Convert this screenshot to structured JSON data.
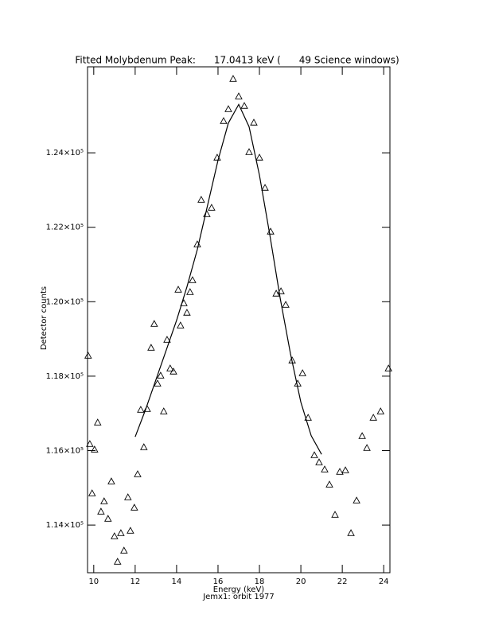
{
  "chart_data": {
    "type": "scatter",
    "title": "Fitted Molybdenum Peak:      17.0413 keV (      49 Science windows)",
    "x_label": "Energy (keV)",
    "y_label": "Detector counts",
    "subtitle": "Jemx1: orbit 1977",
    "xlim": [
      9.7,
      24.3
    ],
    "ylim": [
      112720,
      126310
    ],
    "xticks": [
      10,
      12,
      14,
      16,
      18,
      20,
      22,
      24
    ],
    "yticks": [
      {
        "value": 114000,
        "label": "1.14×10⁵"
      },
      {
        "value": 116000,
        "label": "1.16×10⁵"
      },
      {
        "value": 118000,
        "label": "1.18×10⁵"
      },
      {
        "value": 120000,
        "label": "1.20×10⁵"
      },
      {
        "value": 122000,
        "label": "1.22×10⁵"
      },
      {
        "value": 124000,
        "label": "1.24×10⁵"
      }
    ],
    "series": [
      {
        "style": "triangle",
        "color": "#000000",
        "x": [
          9.73,
          9.81,
          9.92,
          10.04,
          10.19,
          10.35,
          10.5,
          10.69,
          10.85,
          11.0,
          11.15,
          11.31,
          11.46,
          11.65,
          11.77,
          11.96,
          12.12,
          12.27,
          12.42,
          12.58,
          12.77,
          12.92,
          13.08,
          13.23,
          13.38,
          13.54,
          13.69,
          13.85,
          14.08,
          14.19,
          14.35,
          14.5,
          14.65,
          14.77,
          15.0,
          15.19,
          15.46,
          15.69,
          15.96,
          16.27,
          16.5,
          16.73,
          17.0,
          17.27,
          17.5,
          17.73,
          18.0,
          18.27,
          18.54,
          18.81,
          19.04,
          19.27,
          19.58,
          19.85,
          20.08,
          20.35,
          20.65,
          20.88,
          21.15,
          21.38,
          21.65,
          21.88,
          22.15,
          22.42,
          22.69,
          22.96,
          23.19,
          23.5,
          23.85,
          24.23
        ],
        "values": [
          118552,
          116180,
          114855,
          116030,
          116757,
          114363,
          114641,
          114171,
          115175,
          113701,
          113017,
          113786,
          113316,
          114748,
          113850,
          114470,
          115368,
          117099,
          116094,
          117120,
          118765,
          119406,
          117804,
          118017,
          117056,
          118979,
          118210,
          118125,
          120325,
          119364,
          119962,
          119706,
          120261,
          120582,
          121543,
          122740,
          122355,
          122526,
          123873,
          124856,
          125176,
          125988,
          125518,
          125262,
          124022,
          124813,
          123873,
          123061,
          121886,
          120219,
          120283,
          119919,
          118424,
          117804,
          118082,
          116885,
          115880,
          115688,
          115496,
          115090,
          114278,
          115432,
          115474,
          113786,
          114662,
          116393,
          116073,
          116885,
          117056,
          118210
        ]
      },
      {
        "style": "line",
        "color": "#000000",
        "x": [
          12.0,
          12.5,
          13.0,
          13.5,
          14.0,
          14.5,
          15.0,
          15.5,
          16.0,
          16.5,
          17.0,
          17.5,
          18.0,
          18.5,
          19.0,
          19.5,
          20.0,
          20.5,
          21.0
        ],
        "values": [
          116370,
          117100,
          117900,
          118700,
          119500,
          120400,
          121400,
          122600,
          123800,
          124800,
          125300,
          124700,
          123400,
          121800,
          120100,
          118600,
          117300,
          116400,
          115900
        ]
      }
    ]
  }
}
